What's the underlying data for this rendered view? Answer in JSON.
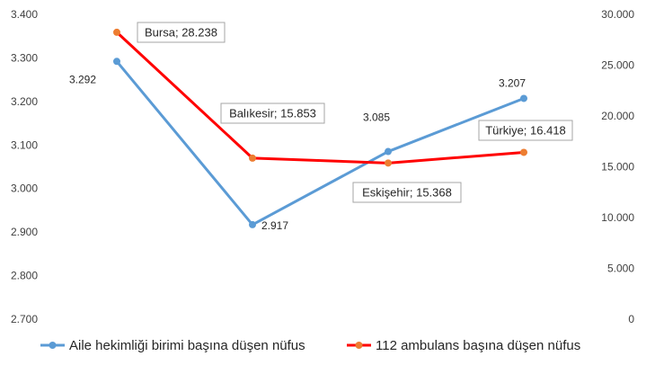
{
  "chart_data": {
    "type": "line",
    "categories": [
      "Bursa",
      "Balıkesir",
      "Eskişehir",
      "Türkiye"
    ],
    "series": [
      {
        "name": "Aile hekimliği birimi başına düşen nüfus",
        "axis": "left",
        "color": "#5B9BD5",
        "values": [
          3292,
          2917,
          3085,
          3207
        ],
        "labels": [
          "3.292",
          "2.917",
          "3.085",
          "3.207"
        ]
      },
      {
        "name": "112 ambulans başına düşen nüfus",
        "axis": "right",
        "color": "#FF0000",
        "marker_color": "#ED7D31",
        "values": [
          28238,
          15853,
          15368,
          16418
        ],
        "labels": [
          "Bursa; 28.238",
          "Balıkesir; 15.853",
          "Eskişehir; 15.368",
          "Türkiye; 16.418"
        ]
      }
    ],
    "y_left": {
      "ylim": [
        2700,
        3400
      ],
      "ticks": [
        3400,
        3300,
        3200,
        3100,
        3000,
        2900,
        2800,
        2700
      ],
      "tick_labels": [
        "3.400",
        "3.300",
        "3.200",
        "3.100",
        "3.000",
        "2.900",
        "2.800",
        "2.700"
      ]
    },
    "y_right": {
      "ylim": [
        0,
        30000
      ],
      "ticks": [
        30000,
        25000,
        20000,
        15000,
        10000,
        5000,
        0
      ],
      "tick_labels": [
        "30.000",
        "25.000",
        "20.000",
        "15.000",
        "10.000",
        "5.000",
        "0"
      ]
    },
    "grid": false,
    "legend_position": "bottom"
  }
}
